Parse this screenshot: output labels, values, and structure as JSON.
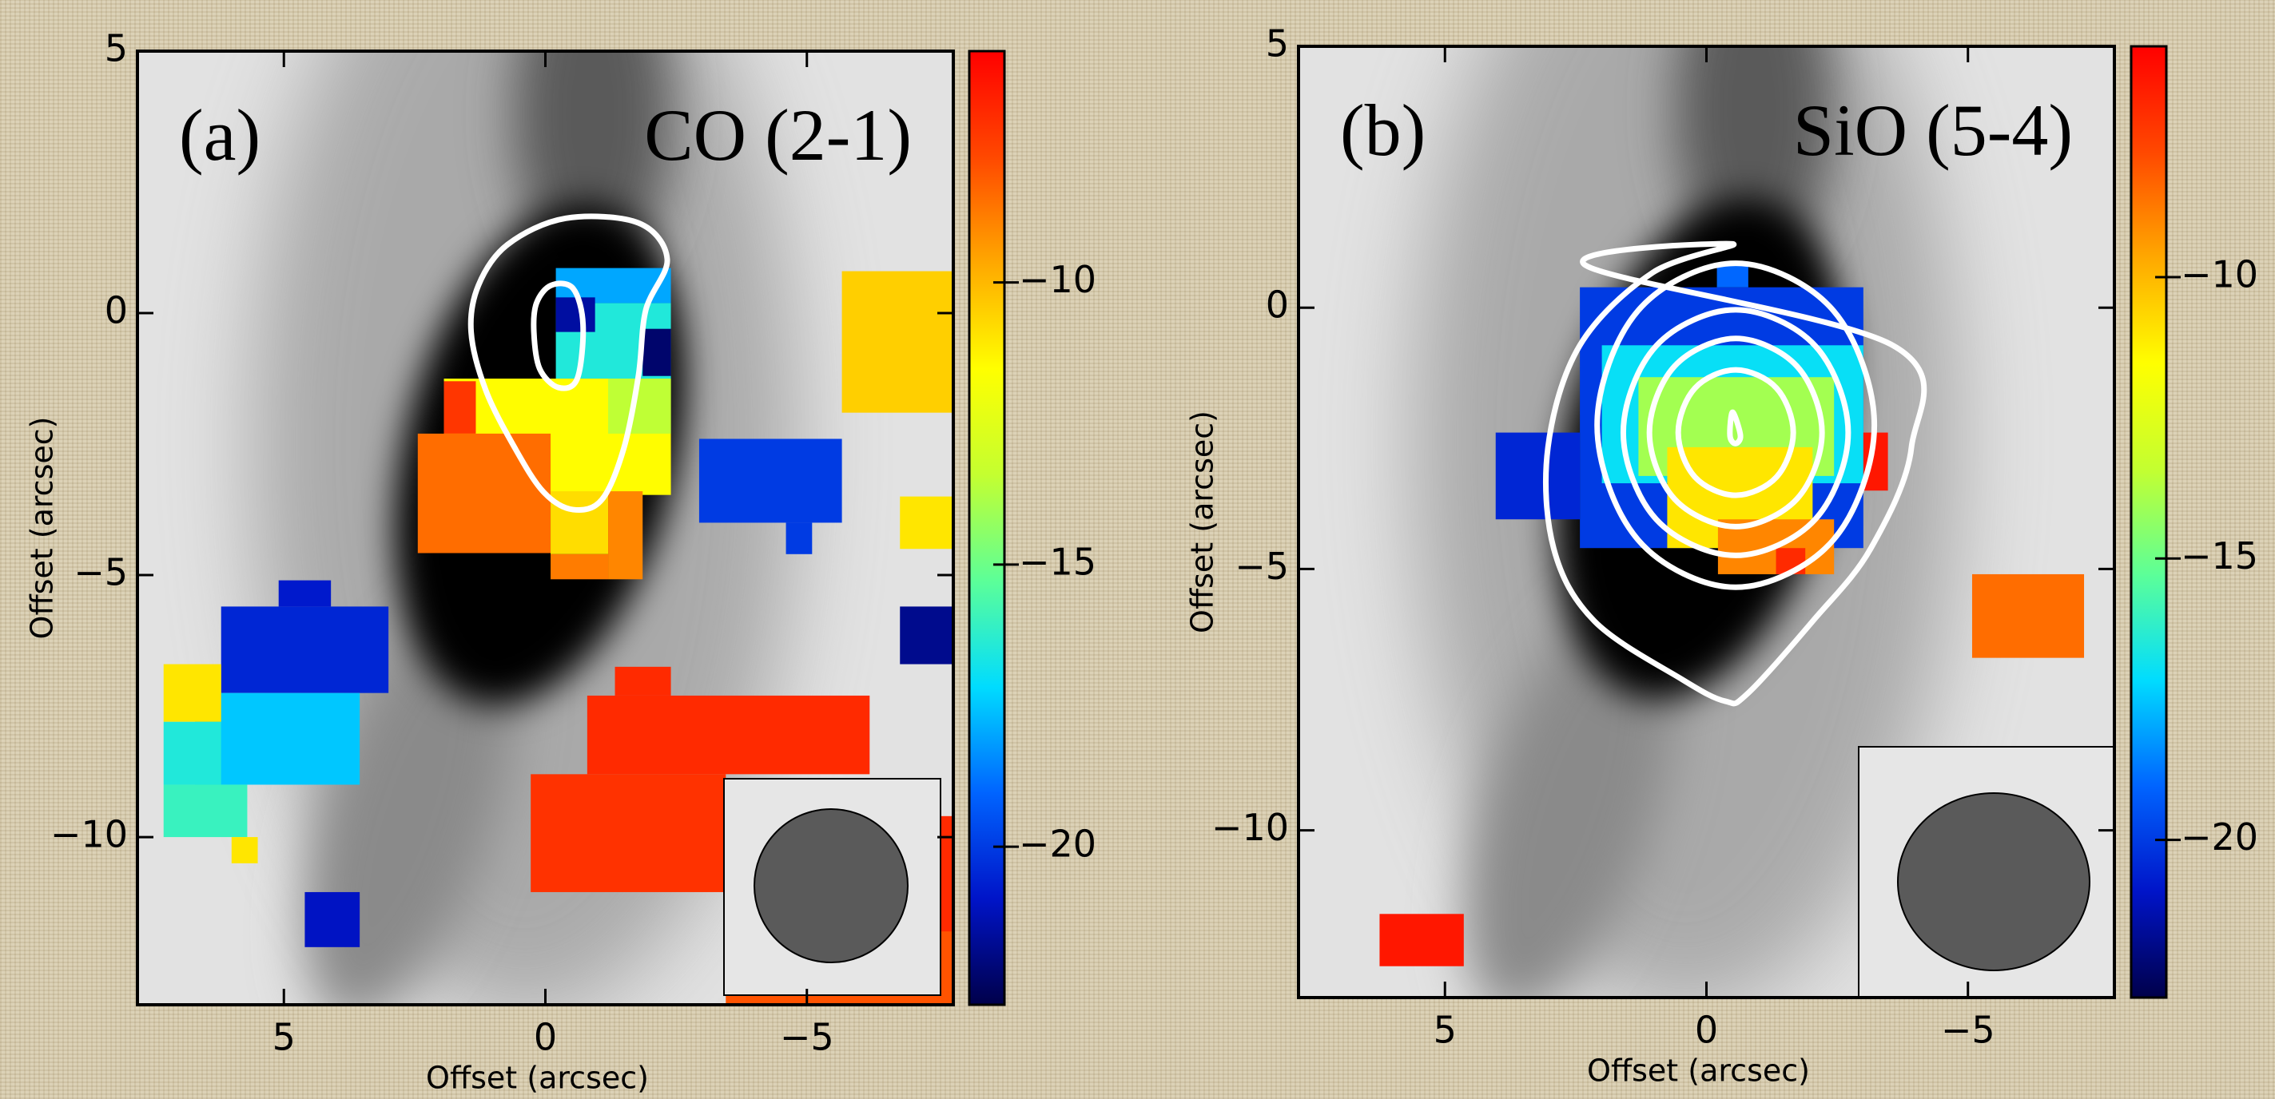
{
  "chart_data": [
    {
      "type": "heatmap",
      "label": "(a)",
      "title": "CO (2-1)",
      "x_label": "Offset (arcsec)",
      "y_label": "Offset (arcsec)",
      "xlim": [
        7.8,
        -7.8
      ],
      "ylim": [
        -13.2,
        5
      ],
      "xticks": [
        5,
        0,
        {
          "value": -5,
          "label": "−5"
        }
      ],
      "yticks": [
        5,
        0,
        {
          "value": -5,
          "label": "−5"
        },
        {
          "value": -10,
          "label": "−10"
        }
      ],
      "clim": [
        -22.8,
        -5.9
      ],
      "cticks": [
        {
          "value": -10,
          "label": "−10"
        },
        {
          "value": -15,
          "label": "−15"
        },
        {
          "value": -20,
          "label": "−20"
        }
      ],
      "colormap": [
        "#00004a",
        "#0014c8",
        "#0064ff",
        "#00dcff",
        "#5cff98",
        "#c4ff30",
        "#ffff00",
        "#ffa800",
        "#ff4800",
        "#ff0000"
      ],
      "contour_color": "#ffffff",
      "pixels": {
        "x0": [
          -0.2,
          -0.2,
          -0.2,
          -1.86,
          1.94,
          -1.2,
          1.94,
          2.44,
          -0.1,
          -1.2,
          -0.1,
          -5.67,
          -2.94,
          -4.6,
          -6.78,
          -6.78,
          6.2,
          5.1,
          6.7,
          7.3,
          7.3,
          7.3,
          6.0,
          4.6,
          -1.33,
          -0.8,
          0.28,
          -7.3,
          -3.45
        ],
        "x1": [
          -2.4,
          -2.4,
          -0.95,
          -2.4,
          -2.4,
          -2.4,
          1.33,
          -0.1,
          -1.2,
          -1.86,
          -1.2,
          -7.8,
          -5.67,
          -5.1,
          -7.8,
          -7.8,
          3.0,
          4.1,
          3.55,
          6.2,
          6.2,
          5.7,
          5.5,
          3.55,
          -2.4,
          -6.2,
          -3.45,
          -7.8,
          -7.8
        ],
        "y0": [
          0.19,
          -1.25,
          -0.36,
          -1.2,
          -3.47,
          -2.3,
          -2.3,
          -4.58,
          -4.6,
          -5.08,
          -5.08,
          -1.9,
          -4.0,
          -4.6,
          -4.5,
          -6.7,
          -7.25,
          -5.6,
          -9.0,
          -7.8,
          -9.0,
          -10.0,
          -10.5,
          -12.1,
          -7.3,
          -8.8,
          -11.05,
          -13.2,
          -13.2
        ],
        "y1": [
          0.86,
          0.19,
          0.3,
          -0.3,
          -1.25,
          -1.25,
          -1.3,
          -2.3,
          -3.4,
          -3.4,
          -4.6,
          0.8,
          -2.4,
          -4.0,
          -3.5,
          -5.6,
          -5.6,
          -5.1,
          -7.25,
          -6.7,
          -7.8,
          -9.0,
          -10.0,
          -11.05,
          -6.75,
          -7.3,
          -8.8,
          -9.6,
          -11.8
        ],
        "values": [
          -18,
          -16.5,
          -21.5,
          -22.3,
          -11.5,
          -13.5,
          -7.3,
          -8.5,
          -10.8,
          -9,
          -8.8,
          -10.5,
          -20,
          -20,
          -11,
          -21.8,
          -20.5,
          -20.8,
          -17.5,
          -11,
          -16.5,
          -16,
          -11,
          -21,
          -7,
          -7,
          -7.2,
          -7,
          -8
        ]
      },
      "contours": [
        {
          "x": [
            1.28,
            0.72,
            -0.39,
            -1.78,
            -2.33,
            -1.92,
            -1.78,
            -1.5,
            -1.08,
            -0.53,
            0.03,
            0.58,
            1.14,
            1.42
          ],
          "y": [
            0.53,
            1.31,
            1.81,
            1.72,
            1.03,
            0.06,
            -1.19,
            -2.58,
            -3.56,
            -3.75,
            -3.42,
            -2.58,
            -1.47,
            -0.36
          ]
        },
        {
          "x": [
            0.17,
            -0.11,
            -0.53,
            -0.72,
            -0.61,
            -0.25,
            0.11,
            0.22
          ],
          "y": [
            0.19,
            0.53,
            0.47,
            -0.22,
            -1.25,
            -1.42,
            -1.06,
            -0.36
          ]
        }
      ]
    },
    {
      "type": "heatmap",
      "label": "(b)",
      "title": "SiO (5-4)",
      "x_label": "Offset (arcsec)",
      "y_label": "Offset (arcsec)",
      "xlim": [
        7.8,
        -7.8
      ],
      "ylim": [
        -13.2,
        5
      ],
      "xticks": [
        5,
        0,
        {
          "value": -5,
          "label": "−5"
        }
      ],
      "yticks": [
        5,
        0,
        {
          "value": -5,
          "label": "−5"
        },
        {
          "value": -10,
          "label": "−10"
        }
      ],
      "clim": [
        -22.8,
        -5.9
      ],
      "cticks": [
        {
          "value": -10,
          "label": "−10"
        },
        {
          "value": -15,
          "label": "−15"
        },
        {
          "value": -20,
          "label": "−20"
        }
      ],
      "colormap": [
        "#00004a",
        "#0014c8",
        "#0064ff",
        "#00dcff",
        "#5cff98",
        "#c4ff30",
        "#ffff00",
        "#ffa800",
        "#ff4800",
        "#ff0000"
      ],
      "contour_color": "#ffffff",
      "pixels": {
        "x0": [
          2.42,
          -0.2,
          2.0,
          1.3,
          0.75,
          -0.22,
          -3.0,
          -1.33,
          4.03,
          -5.08,
          6.25
        ],
        "x1": [
          -3.0,
          -0.8,
          -3.0,
          -2.44,
          -2.03,
          -2.44,
          -3.47,
          -1.89,
          2.42,
          -7.22,
          4.64
        ],
        "y0": [
          -4.6,
          0.39,
          -3.36,
          -3.22,
          -4.6,
          -5.1,
          -3.5,
          -5.1,
          -4.05,
          -6.7,
          -12.6
        ],
        "y1": [
          0.39,
          0.8,
          -0.72,
          -1.33,
          -2.67,
          -4.05,
          -2.39,
          -4.6,
          -2.39,
          -5.1,
          -11.6
        ],
        "values": [
          -20,
          -19,
          -17,
          -14,
          -11,
          -9,
          -6.5,
          -7,
          -20.5,
          -8.5,
          -6.5
        ]
      },
      "contours": [
        {
          "x": [
            -0.5,
            2.31,
            -3.56,
            -3.92,
            -3.14,
            -2.03,
            -0.78,
            -0.36,
            0.47,
            2.14,
            2.92,
            3.03,
            2.42,
            1.03
          ],
          "y": [
            1.22,
            0.81,
            -0.72,
            -2.67,
            -4.61,
            -6.0,
            -7.39,
            -7.53,
            -7.11,
            -6.0,
            -4.61,
            -2.67,
            -0.72,
            0.67
          ]
        },
        {
          "x": [
            2.09,
            1.31,
            -0.56,
            -2.43,
            -3.21,
            -2.43,
            -0.56,
            1.31
          ],
          "y": [
            -2.25,
            -0.06,
            0.85,
            -0.06,
            -2.25,
            -4.44,
            -5.35,
            -4.44
          ]
        },
        {
          "x": [
            1.59,
            0.96,
            -0.56,
            -2.08,
            -2.71,
            -2.08,
            -0.56,
            0.96
          ],
          "y": [
            -2.39,
            -0.73,
            -0.04,
            -0.73,
            -2.39,
            -4.05,
            -4.74,
            -4.05
          ]
        },
        {
          "x": [
            1.09,
            0.61,
            -0.56,
            -1.73,
            -2.21,
            -1.73,
            -0.56,
            0.61
          ],
          "y": [
            -2.39,
            -1.12,
            -0.59,
            -1.12,
            -2.39,
            -3.66,
            -4.19,
            -3.66
          ]
        },
        {
          "x": [
            0.54,
            0.22,
            -0.56,
            -1.34,
            -1.66,
            -1.34,
            -0.56,
            0.22
          ],
          "y": [
            -2.39,
            -1.54,
            -1.19,
            -1.54,
            -2.39,
            -3.24,
            -3.59,
            -3.24
          ]
        },
        {
          "x": [
            -0.5,
            -0.65,
            -0.55,
            -0.45
          ],
          "y": [
            -2.0,
            -2.45,
            -2.6,
            -2.45
          ]
        }
      ]
    }
  ]
}
